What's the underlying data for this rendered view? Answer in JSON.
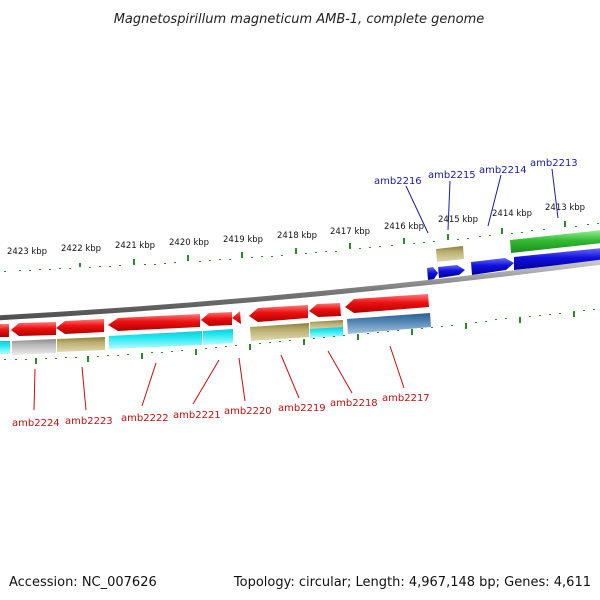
{
  "title": "Magnetospirillum magneticum AMB-1, complete genome",
  "footer": {
    "accession": "Accession: NC_007626",
    "topology": "Topology: circular; Length: 4,967,148 bp; Genes: 4,611"
  },
  "colors": {
    "label_top": "#1a1aa6",
    "label_bottom": "#c01010",
    "tick": "#2a8a2a",
    "backbone": "#808080",
    "red": "#ee1111",
    "blue": "#1010dd",
    "green": "#33bb33",
    "olive": "#b8ad6e",
    "cyan": "#22e8f0",
    "gray": "#b8b8b8",
    "steel": "#4a7fb0"
  },
  "kbp_labels": [
    "2423 kbp",
    "2422 kbp",
    "2421 kbp",
    "2420 kbp",
    "2419 kbp",
    "2418 kbp",
    "2417 kbp",
    "2416 kbp",
    "2415 kbp",
    "2414 kbp",
    "2413 kbp"
  ],
  "genes_top": [
    "amb2216",
    "amb2215",
    "amb2214",
    "amb2213"
  ],
  "genes_bottom": [
    "amb2224",
    "amb2223",
    "amb2222",
    "amb2221",
    "amb2220",
    "amb2219",
    "amb2218",
    "amb2217"
  ]
}
